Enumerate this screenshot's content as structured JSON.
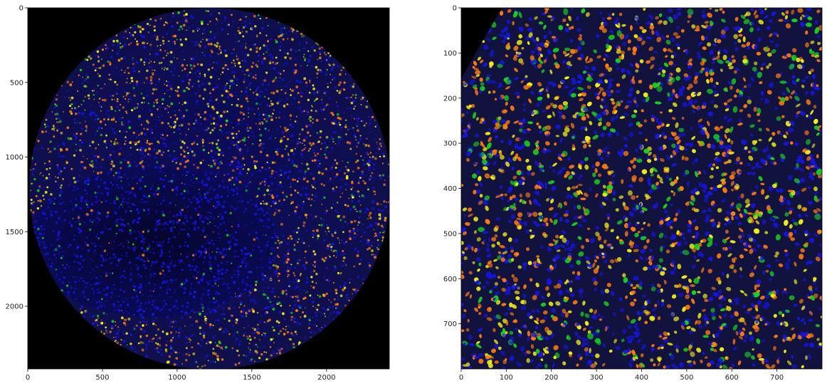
{
  "colors": {
    "background": "#000000",
    "nuclei": "#1515e0",
    "membrane_orange": "#ff7a10",
    "marker_yellow": "#f2ee18",
    "marker_green": "#19d11f"
  },
  "panels": [
    {
      "id": "whole-core",
      "xlim": [
        0,
        2420
      ],
      "ylim": [
        2420,
        0
      ],
      "xticks": [
        0,
        500,
        1000,
        1500,
        2000
      ],
      "yticks": [
        0,
        500,
        1000,
        1500,
        2000
      ],
      "xtick_labels": [
        "0",
        "500",
        "1000",
        "1500",
        "2000"
      ],
      "ytick_labels": [
        "0",
        "500",
        "1000",
        "1500",
        "2000"
      ]
    },
    {
      "id": "zoom-crop",
      "xlim": [
        0,
        800
      ],
      "ylim": [
        800,
        0
      ],
      "xticks": [
        0,
        100,
        200,
        300,
        400,
        500,
        600,
        700
      ],
      "yticks": [
        0,
        100,
        200,
        300,
        400,
        500,
        600,
        700
      ],
      "xtick_labels": [
        "0",
        "100",
        "200",
        "300",
        "400",
        "500",
        "600",
        "700"
      ],
      "ytick_labels": [
        "0",
        "100",
        "200",
        "300",
        "400",
        "500",
        "600",
        "700"
      ]
    }
  ]
}
